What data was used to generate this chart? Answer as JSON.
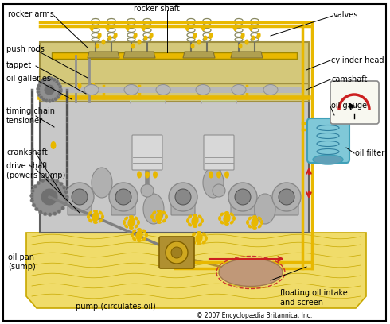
{
  "bg_color": "#ffffff",
  "oil_yellow": "#e8b800",
  "oil_light": "#f5d840",
  "oil_pan_color": "#f0dc6a",
  "oil_pan_wave": "#c8a800",
  "engine_gray": "#c8c8c8",
  "engine_dark": "#909090",
  "engine_outline": "#606060",
  "cylinder_head_color": "#d4c87a",
  "cylinder_head_edge": "#a09040",
  "cam_color": "#b8b8b8",
  "piston_color": "#c0c0c0",
  "piston_light": "#d8d8d8",
  "crank_color": "#b0b0b0",
  "crank_dark": "#888888",
  "gear_color": "#909090",
  "gear_dark": "#707070",
  "spring_color": "#888860",
  "filter_blue": "#80c8d8",
  "filter_dark": "#40a0b8",
  "gauge_bg": "#f8f8f0",
  "gauge_red": "#cc2020",
  "pump_color": "#b09030",
  "intake_color": "#c09878",
  "intake_edge": "#a07850",
  "red_arrow": "#cc2020",
  "label_fs": 7,
  "copyright": "© 2007 Encyclopædia Britannica, Inc.",
  "labels": {
    "rocker_arms": "rocker arms",
    "rocker_shaft": "rocker shaft",
    "valves": "valves",
    "push_rods": "push rods",
    "tappet": "tappet",
    "oil_galleries": "oil galleries",
    "cylinder_head": "cylinder head",
    "camshaft": "camshaft",
    "timing_chain": "timing chain\ntensioner",
    "crankshaft": "crankshaft",
    "drive_shaft": "drive shaft\n(powers pump)",
    "oil_pan": "oil pan\n(sump)",
    "pump": "pump (circulates oil)",
    "oil_gauge": "oil gauge",
    "oil_filter": "oil filter",
    "floating": "floating oil intake\nand screen"
  }
}
